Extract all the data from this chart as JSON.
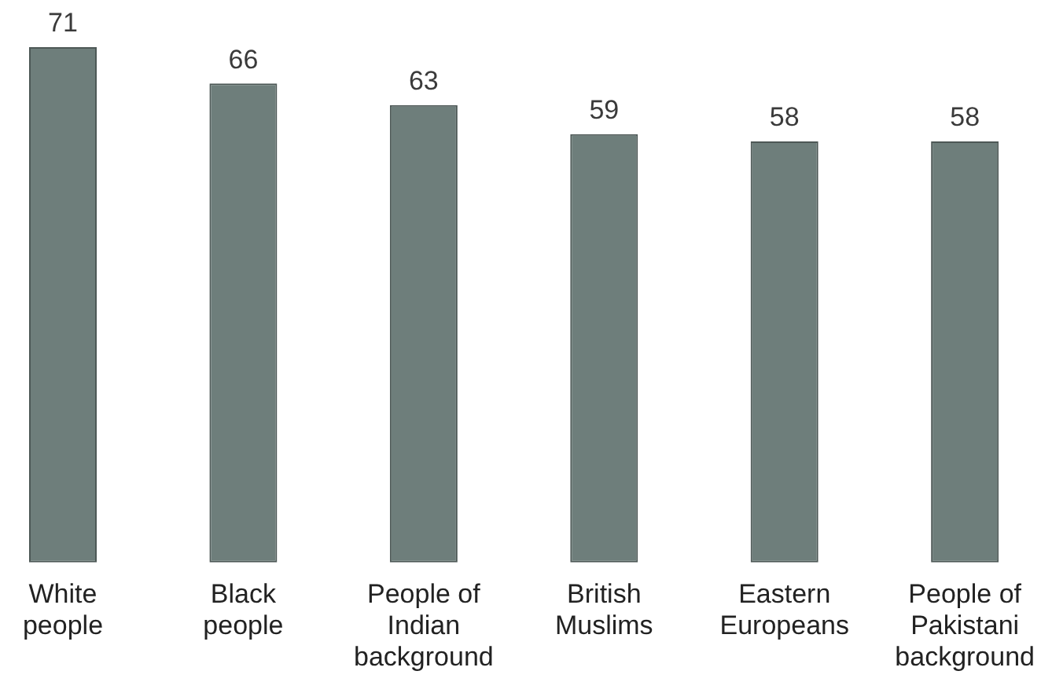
{
  "chart_data": {
    "type": "bar",
    "categories": [
      "White people",
      "Black people",
      "People of Indian background",
      "British Muslims",
      "Eastern Europeans",
      "People of Pakistani background"
    ],
    "values": [
      71,
      66,
      63,
      59,
      58,
      58
    ],
    "color": "#6e7e7b",
    "data_labels": true,
    "tick_labels": "x"
  }
}
